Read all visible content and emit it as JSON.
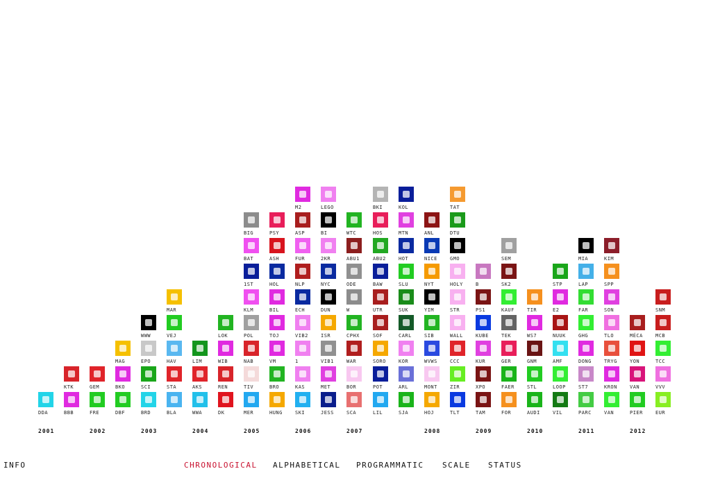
{
  "columns": [
    [
      {
        "label": "DDA",
        "color": "#22d4e8"
      }
    ],
    [
      {
        "label": "BBB",
        "color": "#e02ae0"
      },
      {
        "label": "KTK",
        "color": "#d8242a"
      }
    ],
    [
      {
        "label": "FRE",
        "color": "#22cc22"
      },
      {
        "label": "GEM",
        "color": "#e0242a"
      }
    ],
    [
      {
        "label": "DBF",
        "color": "#22cc22"
      },
      {
        "label": "BKO",
        "color": "#e02ae0"
      },
      {
        "label": "MAG",
        "color": "#f5c000"
      }
    ],
    [
      {
        "label": "BRD",
        "color": "#22d4e8"
      },
      {
        "label": "SCI",
        "color": "#1aa61a"
      },
      {
        "label": "EPO",
        "color": "#c8c8c8"
      },
      {
        "label": "WWW",
        "color": "#000000"
      }
    ],
    [
      {
        "label": "BLA",
        "color": "#4ab4f0"
      },
      {
        "label": "STA",
        "color": "#e0242a"
      },
      {
        "label": "HAV",
        "color": "#5ab8f0"
      },
      {
        "label": "VEJ",
        "color": "#22cc22"
      },
      {
        "label": "MAR",
        "color": "#f5c000"
      }
    ],
    [
      {
        "label": "WWA",
        "color": "#22c0ea"
      },
      {
        "label": "AKS",
        "color": "#e0242a"
      },
      {
        "label": "LIM",
        "color": "#14961e"
      }
    ],
    [
      {
        "label": "DK",
        "color": "#e0141e"
      },
      {
        "label": "REN",
        "color": "#d8242a"
      },
      {
        "label": "WIB",
        "color": "#e02ae0"
      },
      {
        "label": "LOK",
        "color": "#22b422"
      }
    ],
    [
      {
        "label": "MER",
        "color": "#22a8f0"
      },
      {
        "label": "TIV",
        "color": "#f4dada"
      },
      {
        "label": "NAB",
        "color": "#d8242a"
      },
      {
        "label": "POL",
        "color": "#a0a0a0"
      },
      {
        "label": "KLM",
        "color": "#f050f0"
      },
      {
        "label": "1ST",
        "color": "#0a1e9a"
      },
      {
        "label": "BAT",
        "color": "#f050f0"
      },
      {
        "label": "BIG",
        "color": "#8c8c8c"
      }
    ],
    [
      {
        "label": "HUNG",
        "color": "#f5a800"
      },
      {
        "label": "BRO",
        "color": "#22b422"
      },
      {
        "label": "VM",
        "color": "#e02ae0"
      },
      {
        "label": "TOJ",
        "color": "#e02ae0"
      },
      {
        "label": "BIL",
        "color": "#e02ae0"
      },
      {
        "label": "HOL",
        "color": "#0a2aa0"
      },
      {
        "label": "ASH",
        "color": "#d8141e"
      },
      {
        "label": "PSY",
        "color": "#e81e5a"
      }
    ],
    [
      {
        "label": "SKI",
        "color": "#22b0f0"
      },
      {
        "label": "KAS",
        "color": "#f080f0"
      },
      {
        "label": "1",
        "color": "#f080f0"
      },
      {
        "label": "VIB2",
        "color": "#f080f0"
      },
      {
        "label": "ECH",
        "color": "#0a2aa0"
      },
      {
        "label": "NLP",
        "color": "#b01e1e"
      },
      {
        "label": "FUR",
        "color": "#f060f0"
      },
      {
        "label": "ASP",
        "color": "#a81e1e"
      },
      {
        "label": "M2",
        "color": "#e02ae0"
      }
    ],
    [
      {
        "label": "JESS",
        "color": "#0a1e8c"
      },
      {
        "label": "MET",
        "color": "#e040e0"
      },
      {
        "label": "VIB1",
        "color": "#909090"
      },
      {
        "label": "ISR",
        "color": "#f5a800"
      },
      {
        "label": "DUN",
        "color": "#000000"
      },
      {
        "label": "NYC",
        "color": "#0a2aa0"
      },
      {
        "label": "2KR",
        "color": "#f080f0"
      },
      {
        "label": "BI",
        "color": "#000000"
      },
      {
        "label": "LEGO",
        "color": "#f080f0"
      }
    ],
    [
      {
        "label": "SCA",
        "color": "#e87070"
      },
      {
        "label": "BOR",
        "color": "#f8c8f0"
      },
      {
        "label": "WAR",
        "color": "#b01e1e"
      },
      {
        "label": "CPHX",
        "color": "#22b422"
      },
      {
        "label": "W",
        "color": "#8c8c8c"
      },
      {
        "label": "ODE",
        "color": "#909090"
      },
      {
        "label": "ABU1",
        "color": "#8c1e1e"
      },
      {
        "label": "WTC",
        "color": "#22b422"
      }
    ],
    [
      {
        "label": "LIL",
        "color": "#22a8f0"
      },
      {
        "label": "POT",
        "color": "#0a1e9a"
      },
      {
        "label": "SORO",
        "color": "#f5a800"
      },
      {
        "label": "SOF",
        "color": "#a81e1e"
      },
      {
        "label": "UTR",
        "color": "#a81e1e"
      },
      {
        "label": "BAW",
        "color": "#0a1e9a"
      },
      {
        "label": "ABU2",
        "color": "#22a822"
      },
      {
        "label": "HOS",
        "color": "#e81e5a"
      },
      {
        "label": "BKI",
        "color": "#b4b4b4"
      }
    ],
    [
      {
        "label": "SJA",
        "color": "#1ab41a"
      },
      {
        "label": "ARL",
        "color": "#6a70d8"
      },
      {
        "label": "KOR",
        "color": "#f080f0"
      },
      {
        "label": "CARL",
        "color": "#145a28"
      },
      {
        "label": "SUK",
        "color": "#1a8c1a"
      },
      {
        "label": "SLU",
        "color": "#22cc22"
      },
      {
        "label": "HOT",
        "color": "#0a2aa0"
      },
      {
        "label": "MTN",
        "color": "#e040e0"
      },
      {
        "label": "KOL",
        "color": "#0a1e9a"
      }
    ],
    [
      {
        "label": "HOJ",
        "color": "#f5a800"
      },
      {
        "label": "MONT",
        "color": "#f8c8f0"
      },
      {
        "label": "WVWS",
        "color": "#2a4ae0"
      },
      {
        "label": "SIB",
        "color": "#22b422"
      },
      {
        "label": "YIM",
        "color": "#000000"
      },
      {
        "label": "NYT",
        "color": "#f59a00"
      },
      {
        "label": "NICE",
        "color": "#0a3ab4"
      },
      {
        "label": "ANL",
        "color": "#8c1414"
      }
    ],
    [
      {
        "label": "TLT",
        "color": "#0a3ae0"
      },
      {
        "label": "ZIR",
        "color": "#66ee22"
      },
      {
        "label": "CCC",
        "color": "#e0242a"
      },
      {
        "label": "WALL",
        "color": "#f8b0f0"
      },
      {
        "label": "STR",
        "color": "#f8b0f0"
      },
      {
        "label": "HOLY",
        "color": "#f8b0f0"
      },
      {
        "label": "GMO",
        "color": "#000000"
      },
      {
        "label": "DTU",
        "color": "#1a9a1a"
      },
      {
        "label": "TAT",
        "color": "#f59a30"
      }
    ],
    [
      {
        "label": "TAM",
        "color": "#7a1414"
      },
      {
        "label": "XPO",
        "color": "#7a1414"
      },
      {
        "label": "KUR",
        "color": "#e040e0"
      },
      {
        "label": "KUBE",
        "color": "#0a3ae0"
      },
      {
        "label": "PS1",
        "color": "#7a1414"
      },
      {
        "label": "B",
        "color": "#c878c0"
      }
    ],
    [
      {
        "label": "FOR",
        "color": "#f5901e"
      },
      {
        "label": "FAER",
        "color": "#1ab41a"
      },
      {
        "label": "GER",
        "color": "#e81e5a"
      },
      {
        "label": "TEK",
        "color": "#646464"
      },
      {
        "label": "KAUF",
        "color": "#33ee33"
      },
      {
        "label": "SK2",
        "color": "#7a1414"
      },
      {
        "label": "SEM",
        "color": "#a0a0a0"
      }
    ],
    [
      {
        "label": "AUDI",
        "color": "#1ab41a"
      },
      {
        "label": "STL",
        "color": "#22cc22"
      },
      {
        "label": "GNM",
        "color": "#6a1414"
      },
      {
        "label": "WS7",
        "color": "#e02ae0"
      },
      {
        "label": "TIR",
        "color": "#f5901e"
      }
    ],
    [
      {
        "label": "VIL",
        "color": "#147a14"
      },
      {
        "label": "LOOP",
        "color": "#33ee33"
      },
      {
        "label": "AMF",
        "color": "#33e0f0"
      },
      {
        "label": "NUUK",
        "color": "#a81414"
      },
      {
        "label": "E2",
        "color": "#e02ae0"
      },
      {
        "label": "STP",
        "color": "#1aa61a"
      }
    ],
    [
      {
        "label": "PARC",
        "color": "#44cc44"
      },
      {
        "label": "ST7",
        "color": "#c888c8"
      },
      {
        "label": "DONG",
        "color": "#e02ae0"
      },
      {
        "label": "GHG",
        "color": "#33ee33"
      },
      {
        "label": "FAR",
        "color": "#33dd33"
      },
      {
        "label": "LAP",
        "color": "#44b0e8"
      },
      {
        "label": "MIA",
        "color": "#000000"
      }
    ],
    [
      {
        "label": "VAN",
        "color": "#33ee33"
      },
      {
        "label": "KRON",
        "color": "#e02ae0"
      },
      {
        "label": "TRYG",
        "color": "#e8503c"
      },
      {
        "label": "TLO",
        "color": "#f070e0"
      },
      {
        "label": "SON",
        "color": "#e040e0"
      },
      {
        "label": "SPP",
        "color": "#f5901e"
      },
      {
        "label": "KIM",
        "color": "#8c1e2a"
      }
    ],
    [
      {
        "label": "PIER",
        "color": "#22cc22"
      },
      {
        "label": "VAN",
        "color": "#d8147a"
      },
      {
        "label": "YON",
        "color": "#e01414"
      },
      {
        "label": "MÉCA",
        "color": "#a81e1e"
      }
    ],
    [
      {
        "label": "EUR",
        "color": "#88ee22"
      },
      {
        "label": "VVV",
        "color": "#f070e0"
      },
      {
        "label": "TCC",
        "color": "#33ee33"
      },
      {
        "label": "MCB",
        "color": "#c81e1e"
      },
      {
        "label": "SNM",
        "color": "#c81e1e"
      }
    ]
  ],
  "years": [
    {
      "label": "2001",
      "column": 0
    },
    {
      "label": "2002",
      "column": 2
    },
    {
      "label": "2003",
      "column": 4
    },
    {
      "label": "2004",
      "column": 6
    },
    {
      "label": "2005",
      "column": 8
    },
    {
      "label": "2006",
      "column": 10
    },
    {
      "label": "2007",
      "column": 12
    },
    {
      "label": "2008",
      "column": 15
    },
    {
      "label": "2009",
      "column": 17
    },
    {
      "label": "2010",
      "column": 19
    },
    {
      "label": "2011",
      "column": 21
    },
    {
      "label": "2012",
      "column": 23
    }
  ],
  "nav": {
    "info": "INFO",
    "chronological": "CHRONOLOGICAL",
    "alphabetical": "ALPHABETICAL",
    "programmatic": "PROGRAMMATIC",
    "scale": "SCALE",
    "status": "STATUS",
    "active": "chronological",
    "active_color": "#c8102e"
  }
}
